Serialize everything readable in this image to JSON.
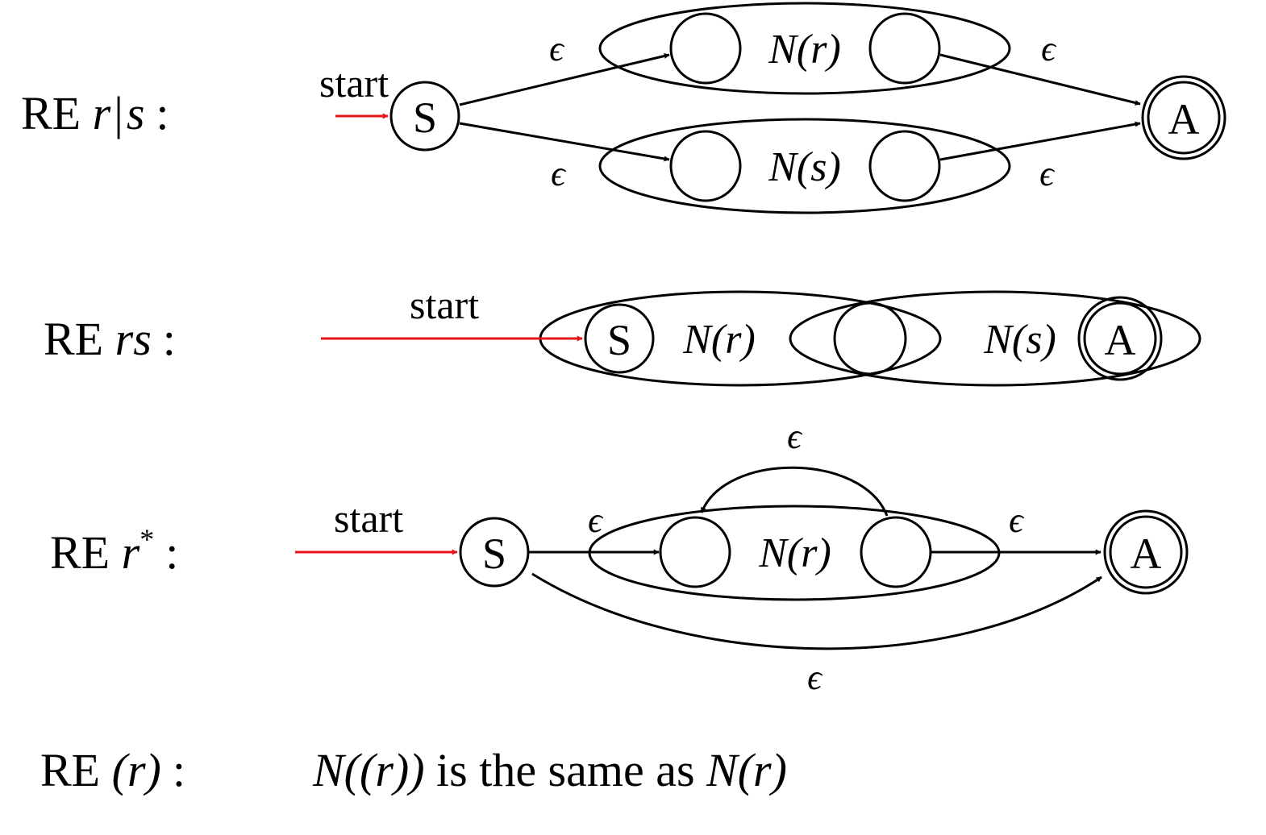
{
  "rules": [
    {
      "id": "union",
      "prefix": "RE ",
      "expr_r": "r",
      "expr_op": "|",
      "expr_s": "s",
      "colon": ":",
      "start_label": "start",
      "state_start": "S",
      "state_accept": "A",
      "sub_upper": "N(r)",
      "sub_lower": "N(s)",
      "edge_labels": [
        "ϵ",
        "ϵ",
        "ϵ",
        "ϵ"
      ]
    },
    {
      "id": "concat",
      "prefix": "RE ",
      "expr": "rs",
      "colon": ":",
      "start_label": "start",
      "state_start": "S",
      "state_accept": "A",
      "sub_left": "N(r)",
      "sub_right": "N(s)"
    },
    {
      "id": "star",
      "prefix": "RE ",
      "expr": "r",
      "sup": "*",
      "colon": ":",
      "start_label": "start",
      "state_start": "S",
      "state_accept": "A",
      "sub": "N(r)",
      "edge_labels": [
        "ϵ",
        "ϵ",
        "ϵ",
        "ϵ"
      ]
    },
    {
      "id": "paren",
      "prefix": "RE ",
      "expr": "(r)",
      "colon": ":",
      "lhs": "N((r))",
      "text": " is the same as ",
      "rhs": "N(r)"
    }
  ],
  "colors": {
    "start_arrow": "#e8141b",
    "stroke": "#000000"
  }
}
